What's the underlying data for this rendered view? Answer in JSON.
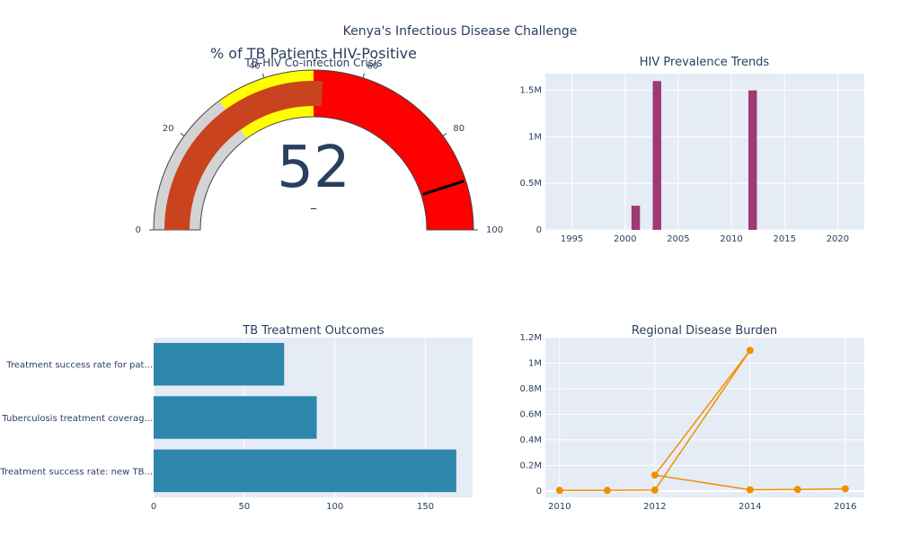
{
  "page_title": "Kenya's Infectious Disease Challenge",
  "colors": {
    "plot_bg": "#e5ecf6",
    "text": "#2a3f5f",
    "gauge_red": "#ff0000",
    "gauge_yellow": "#ffff00",
    "gauge_gray": "#d3d3d3",
    "gauge_bar": "#c9431e",
    "hiv_bar": "#9e3a74",
    "tb_bar": "#2e86ab",
    "line": "#f18f01"
  },
  "chart_data": [
    {
      "type": "gauge",
      "title": "% of TB Patients HIV-Positive",
      "subtitle": "TB-HIV Co-infection Crisis",
      "value": 52,
      "delta_text": "–",
      "range": [
        0,
        100
      ],
      "ticks": [
        0,
        20,
        40,
        60,
        80,
        100
      ],
      "steps": [
        {
          "range": [
            0,
            30
          ],
          "color": "#d3d3d3"
        },
        {
          "range": [
            30,
            50
          ],
          "color": "#ffff00"
        },
        {
          "range": [
            50,
            100
          ],
          "color": "#ff0000"
        }
      ],
      "threshold": 90
    },
    {
      "type": "bar",
      "title": "HIV Prevalence Trends",
      "x": [
        2001,
        2003,
        2012
      ],
      "values": [
        260000,
        1600000,
        1500000
      ],
      "xlim": [
        1992.5,
        2022.5
      ],
      "ylim": [
        0,
        1680000
      ],
      "xticks": [
        1995,
        2000,
        2005,
        2010,
        2015,
        2020
      ],
      "yticks": [
        0,
        500000,
        1000000,
        1500000
      ],
      "ytick_labels": [
        "0",
        "0.5M",
        "1M",
        "1.5M"
      ]
    },
    {
      "type": "bar",
      "orientation": "horizontal",
      "title": "TB Treatment Outcomes",
      "categories": [
        "Treatment success rate for pat...",
        "Tuberculosis treatment coverag...",
        "Treatment success rate: new TB..."
      ],
      "values": [
        72,
        90,
        167
      ],
      "xlim": [
        0,
        176
      ],
      "xticks": [
        0,
        50,
        100,
        150
      ]
    },
    {
      "type": "line",
      "title": "Regional Disease Burden",
      "x": [
        2010,
        2011,
        2012,
        2014,
        2012,
        2014,
        2015,
        2016
      ],
      "values": [
        5000,
        5000,
        8000,
        1100000,
        125000,
        10000,
        12000,
        18000
      ],
      "xlim": [
        2009.7,
        2016.4
      ],
      "ylim": [
        -50000,
        1200000
      ],
      "xticks": [
        2010,
        2012,
        2014,
        2016
      ],
      "yticks": [
        0,
        200000,
        400000,
        600000,
        800000,
        1000000,
        1200000
      ],
      "ytick_labels": [
        "0",
        "0.2M",
        "0.4M",
        "0.6M",
        "0.8M",
        "1M",
        "1.2M"
      ]
    }
  ]
}
